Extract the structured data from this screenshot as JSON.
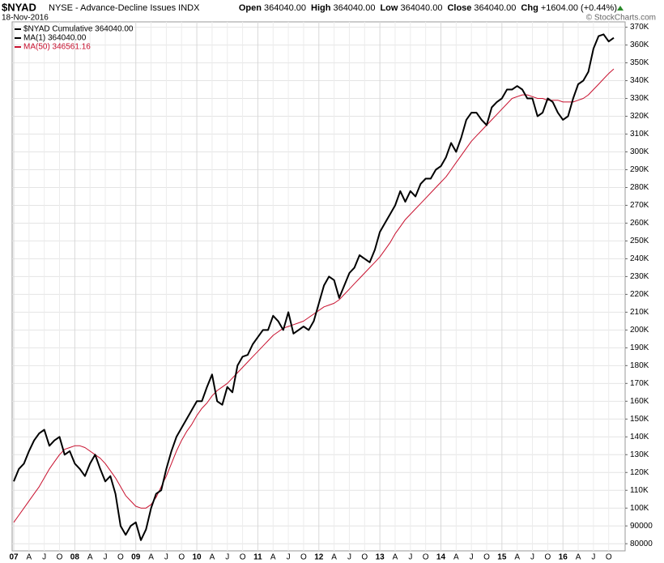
{
  "chart_data": {
    "type": "line",
    "title": "$NYAD",
    "subtitle": "NYSE - Advance-Decline Issues INDX",
    "date": "18-Nov-2016",
    "stats": [
      [
        "Open",
        "364040.00"
      ],
      [
        "High",
        "364040.00"
      ],
      [
        "Low",
        "364040.00"
      ],
      [
        "Close",
        "364040.00"
      ],
      [
        "Chg",
        "+1604.00 (+0.44%)"
      ]
    ],
    "credit": "© StockCharts.com",
    "legend": [
      "$NYAD Cumulative 364040.00",
      "MA(1) 364040.00",
      "MA(50) 346561.16"
    ],
    "categories": [
      "07",
      null,
      null,
      "A",
      null,
      null,
      "J",
      null,
      null,
      "O",
      null,
      null,
      "08",
      null,
      null,
      "A",
      null,
      null,
      "J",
      null,
      null,
      "O",
      null,
      null,
      "09",
      null,
      null,
      "A",
      null,
      null,
      "J",
      null,
      null,
      "O",
      null,
      null,
      "10",
      null,
      null,
      "A",
      null,
      null,
      "J",
      null,
      null,
      "O",
      null,
      null,
      "11",
      null,
      null,
      "A",
      null,
      null,
      "J",
      null,
      null,
      "O",
      null,
      null,
      "12",
      null,
      null,
      "A",
      null,
      null,
      "J",
      null,
      null,
      "O",
      null,
      null,
      "13",
      null,
      null,
      "A",
      null,
      null,
      "J",
      null,
      null,
      "O",
      null,
      null,
      "14",
      null,
      null,
      "A",
      null,
      null,
      "J",
      null,
      null,
      "O",
      null,
      null,
      "15",
      null,
      null,
      "A",
      null,
      null,
      "J",
      null,
      null,
      "O",
      null,
      null,
      "16",
      null,
      null,
      "A",
      null,
      null,
      "J",
      null,
      null,
      "O",
      null
    ],
    "series": [
      {
        "name": "MA(1)",
        "color": "#000000",
        "values": [
          115000,
          122000,
          125000,
          132000,
          138000,
          142000,
          144000,
          135000,
          138000,
          140000,
          130000,
          132000,
          125000,
          122000,
          118000,
          125000,
          130000,
          122000,
          115000,
          118000,
          108000,
          90000,
          85000,
          90000,
          92000,
          82000,
          88000,
          100000,
          108000,
          110000,
          122000,
          132000,
          140000,
          145000,
          150000,
          155000,
          160000,
          160000,
          168000,
          175000,
          160000,
          158000,
          168000,
          165000,
          180000,
          185000,
          186000,
          192000,
          196000,
          200000,
          200000,
          208000,
          205000,
          200000,
          210000,
          198000,
          200000,
          202000,
          200000,
          205000,
          215000,
          225000,
          230000,
          228000,
          218000,
          225000,
          232000,
          235000,
          242000,
          240000,
          238000,
          245000,
          255000,
          260000,
          265000,
          270000,
          278000,
          272000,
          278000,
          275000,
          282000,
          285000,
          285000,
          290000,
          292000,
          297000,
          305000,
          300000,
          308000,
          318000,
          322000,
          322000,
          318000,
          315000,
          325000,
          328000,
          330000,
          335000,
          335000,
          337000,
          335000,
          330000,
          330000,
          320000,
          322000,
          330000,
          328000,
          322000,
          318000,
          320000,
          330000,
          338000,
          340000,
          345000,
          358000,
          365000,
          366000,
          362000,
          364040
        ]
      },
      {
        "name": "MA(50)",
        "color": "#c8102e",
        "values": [
          92000,
          96000,
          100000,
          104000,
          108000,
          112000,
          117000,
          122000,
          126000,
          130000,
          133000,
          134000,
          135000,
          135000,
          134000,
          132000,
          130000,
          128000,
          125000,
          121000,
          117000,
          112000,
          107000,
          104000,
          101000,
          100000,
          100000,
          102000,
          106000,
          112000,
          118000,
          125000,
          132000,
          138000,
          143000,
          147000,
          152000,
          156000,
          159000,
          163000,
          166000,
          168000,
          170000,
          173000,
          176000,
          179000,
          182000,
          185000,
          188000,
          191000,
          194000,
          197000,
          199000,
          201000,
          202000,
          203000,
          204000,
          205000,
          207000,
          209000,
          211000,
          213000,
          214000,
          215000,
          217000,
          220000,
          223000,
          226000,
          229000,
          232000,
          235000,
          238000,
          241000,
          245000,
          249000,
          254000,
          258000,
          262000,
          265000,
          268000,
          271000,
          274000,
          277000,
          280000,
          283000,
          286000,
          290000,
          294000,
          298000,
          302000,
          306000,
          309000,
          312000,
          315000,
          318000,
          321000,
          324000,
          327000,
          330000,
          331000,
          332000,
          332000,
          331000,
          330000,
          330000,
          329000,
          329000,
          329000,
          328000,
          328000,
          328000,
          329000,
          330000,
          332000,
          335000,
          338000,
          341000,
          344000,
          346561.16
        ]
      }
    ],
    "ylim": [
      76000,
      373000
    ],
    "yticks": [
      80000,
      90000,
      {
        "value": 100000,
        "label": "100K"
      },
      {
        "value": 110000,
        "label": "110K"
      },
      {
        "value": 120000,
        "label": "120K"
      },
      {
        "value": 130000,
        "label": "130K"
      },
      {
        "value": 140000,
        "label": "140K"
      },
      {
        "value": 150000,
        "label": "150K"
      },
      {
        "value": 160000,
        "label": "160K"
      },
      {
        "value": 170000,
        "label": "170K"
      },
      {
        "value": 180000,
        "label": "180K"
      },
      {
        "value": 190000,
        "label": "190K"
      },
      {
        "value": 200000,
        "label": "200K"
      },
      {
        "value": 210000,
        "label": "210K"
      },
      {
        "value": 220000,
        "label": "220K"
      },
      {
        "value": 230000,
        "label": "230K"
      },
      {
        "value": 240000,
        "label": "240K"
      },
      {
        "value": 250000,
        "label": "250K"
      },
      {
        "value": 260000,
        "label": "260K"
      },
      {
        "value": 270000,
        "label": "270K"
      },
      {
        "value": 280000,
        "label": "280K"
      },
      {
        "value": 290000,
        "label": "290K"
      },
      {
        "value": 300000,
        "label": "300K"
      },
      {
        "value": 310000,
        "label": "310K"
      },
      {
        "value": 320000,
        "label": "320K"
      },
      {
        "value": 330000,
        "label": "330K"
      },
      {
        "value": 340000,
        "label": "340K"
      },
      {
        "value": 350000,
        "label": "350K"
      },
      {
        "value": 360000,
        "label": "360K"
      },
      {
        "value": 370000,
        "label": "370K"
      }
    ],
    "grid": true
  }
}
